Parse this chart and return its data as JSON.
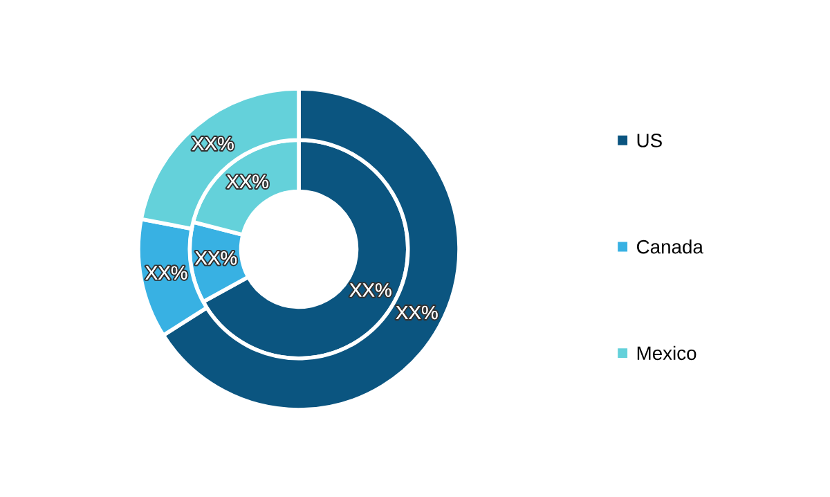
{
  "chart_data": {
    "type": "donut",
    "categories": [
      "US",
      "Canada",
      "Mexico"
    ],
    "colors": [
      "#0b5580",
      "#38b1e3",
      "#64d1da"
    ],
    "series": [
      {
        "values": [
          67,
          12,
          21
        ],
        "value_labels": [
          "XX%",
          "XX%",
          "XX%"
        ]
      },
      {
        "values": [
          66,
          12,
          22
        ],
        "value_labels": [
          "XX%",
          "XX%",
          "XX%"
        ]
      }
    ],
    "legend": "right"
  }
}
